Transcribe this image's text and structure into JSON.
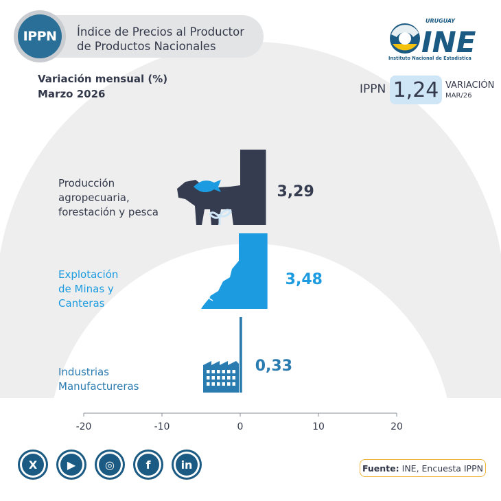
{
  "header": {
    "badge_text": "IPPN",
    "title": "Índice de Precios al Productor\nde Productos Nacionales",
    "logo": {
      "country": "URUGUAY",
      "name": "INE",
      "caption": "Instituto Nacional de Estadística"
    }
  },
  "subtitle": {
    "line1": "Variación mensual (%)",
    "line2": "Marzo 2026"
  },
  "kpi": {
    "label": "IPPN",
    "value": "1,24",
    "caption": "VARIACIÓN",
    "period": "MAR/26"
  },
  "chart_data": {
    "type": "bar",
    "orientation": "horizontal",
    "categories": [
      "Producción\nagropecuaria,\nforestación y pesca",
      "Explotación\nde Minas y\nCanteras",
      "Industrias\nManufactureras"
    ],
    "values": [
      3.29,
      3.48,
      0.33
    ],
    "value_labels": [
      "3,29",
      "3,48",
      "0,33"
    ],
    "colors": [
      "#353c4f",
      "#1c9be0",
      "#2a7bb0"
    ],
    "category_colors": [
      "#33394a",
      "#1c9be0",
      "#2a7bb0"
    ],
    "xlim": [
      -20,
      20
    ],
    "xticks": [
      -20,
      -10,
      0,
      10,
      20
    ],
    "xtick_labels": [
      "-20",
      "-10",
      "0",
      "10",
      "20"
    ],
    "title": "",
    "xlabel": "",
    "ylabel": "",
    "grid": false
  },
  "social": [
    {
      "name": "x-icon",
      "glyph": "X"
    },
    {
      "name": "youtube-icon",
      "glyph": "▶"
    },
    {
      "name": "instagram-icon",
      "glyph": "◎"
    },
    {
      "name": "facebook-icon",
      "glyph": "f"
    },
    {
      "name": "linkedin-icon",
      "glyph": "in"
    }
  ],
  "source": {
    "label": "Fuente:",
    "text": "INE, Encuesta IPPN"
  },
  "colors": {
    "dark": "#33394a",
    "brand_blue": "#2a6f97",
    "light_blue": "#1c9be0",
    "mid_blue": "#2a7bb0",
    "kpi_bg": "#cfe6f6",
    "source_border": "#f0b43c"
  }
}
